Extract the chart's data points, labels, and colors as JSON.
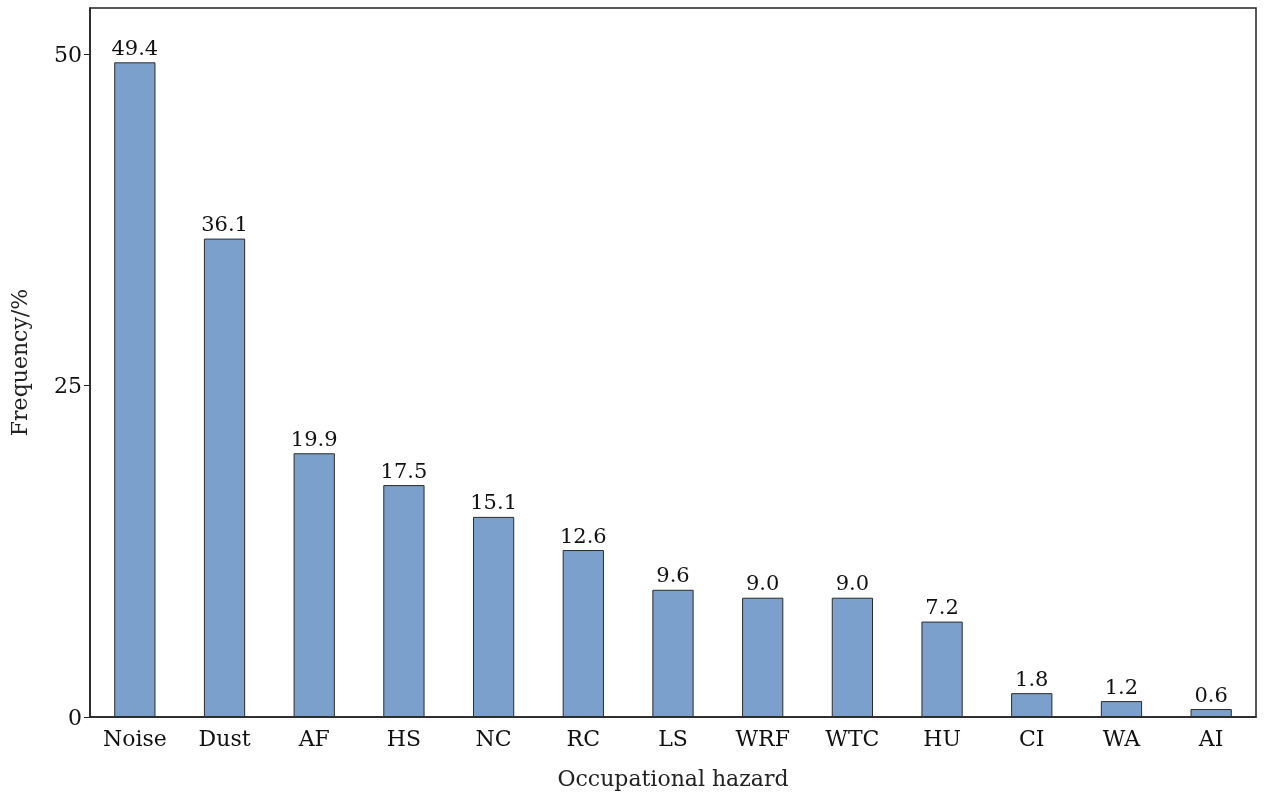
{
  "chart_data": {
    "type": "bar",
    "xlabel": "Occupational hazard",
    "ylabel": "Frequency/%",
    "categories": [
      "Noise",
      "Dust",
      "AF",
      "HS",
      "NC",
      "RC",
      "LS",
      "WRF",
      "WTC",
      "HU",
      "CI",
      "WA",
      "AI"
    ],
    "values": [
      49.4,
      36.1,
      19.9,
      17.5,
      15.1,
      12.6,
      9.6,
      9.0,
      9.0,
      7.2,
      1.8,
      1.2,
      0.6
    ],
    "value_labels": [
      "49.4",
      "36.1",
      "19.9",
      "17.5",
      "15.1",
      "12.6",
      "9.6",
      "9.0",
      "9.0",
      "7.2",
      "1.8",
      "1.2",
      "0.6"
    ],
    "color": "#7aa0cb",
    "ylim": [
      0,
      53.5
    ],
    "yticks": [
      0,
      25,
      50
    ],
    "grid": false
  }
}
